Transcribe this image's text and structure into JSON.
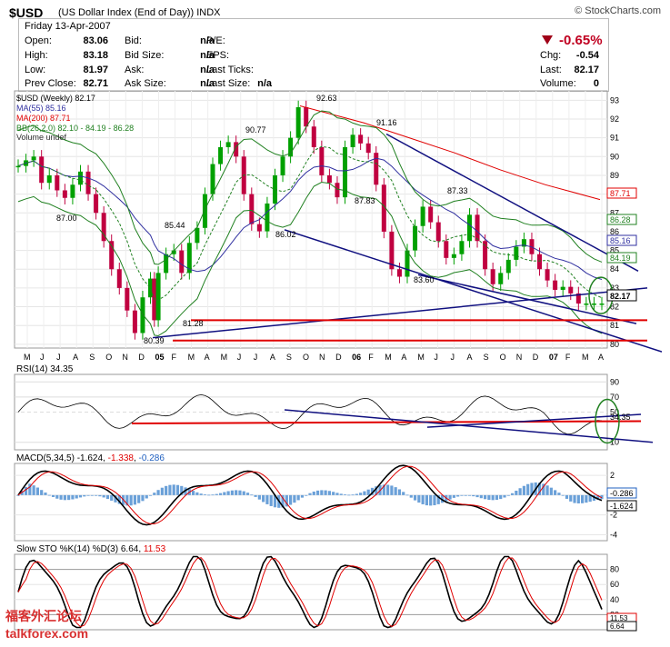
{
  "header": {
    "symbol": "$USD",
    "description": "(US Dollar Index (End of Day))",
    "exchange": "INDX",
    "brand": "© StockCharts.com"
  },
  "quote": {
    "date": "Friday  13-Apr-2007",
    "open_label": "Open:",
    "open": "83.06",
    "high_label": "High:",
    "high": "83.18",
    "low_label": "Low:",
    "low": "81.97",
    "prev_label": "Prev Close:",
    "prev": "82.71",
    "bid_label": "Bid:",
    "bid": "n/a",
    "bidsize_label": "Bid Size:",
    "bidsize": "n/a",
    "ask_label": "Ask:",
    "ask": "n/a",
    "asksize_label": "Ask Size:",
    "asksize": "n/a",
    "pe_label": "P/E:",
    "eps_label": "EPS:",
    "lastticks_label": "Last Ticks:",
    "lastsize_label": "Last Size:",
    "lastsize": "n/a",
    "change_pct": "-0.65%",
    "chg_label": "Chg:",
    "chg": "-0.54",
    "last_label": "Last:",
    "last": "82.17",
    "volume_label": "Volume:",
    "volume": "0"
  },
  "colors": {
    "price_up": "#00a000",
    "price_down": "#c00040",
    "ma55": "#3030a0",
    "ma200": "#e00000",
    "bb": "#208020",
    "trend": "#101080",
    "support": "#e00000",
    "circle": "#208020",
    "accent_red": "#c00020"
  },
  "legend": {
    "price": "$USD (Weekly) 82.17",
    "ma55": "MA(55) 85.16",
    "ma200": "MA(200) 87.71",
    "bb": "BB(26,2.0) 82.10 - 84.19 - 86.28",
    "vol": "Volume undef"
  },
  "indicators": {
    "rsi": "RSI(14) 34.35",
    "macd_name": "MACD(5,34,5)",
    "macd_v1": "-1.624",
    "macd_v2": "-1.338",
    "macd_v3": "-0.286",
    "sto_name": "Slow STO %K(14) %D(3)",
    "sto_k": "6.64",
    "sto_d": "11.53"
  },
  "watermark": {
    "line1": "福客外汇论坛",
    "line2": "talkforex.com"
  },
  "chart_data": [
    {
      "type": "line",
      "title": "$USD (Weekly) 82.17",
      "x_ticks": [
        "M",
        "J",
        "J",
        "A",
        "S",
        "O",
        "N",
        "D",
        "05",
        "F",
        "M",
        "A",
        "M",
        "J",
        "J",
        "A",
        "S",
        "O",
        "N",
        "D",
        "06",
        "F",
        "M",
        "A",
        "M",
        "J",
        "J",
        "A",
        "S",
        "O",
        "N",
        "D",
        "07",
        "F",
        "M",
        "A"
      ],
      "y_ticks": [
        80,
        81,
        82,
        83,
        84,
        85,
        86,
        87,
        88,
        89,
        90,
        91,
        92,
        93
      ],
      "ylim": [
        79.8,
        93.5
      ],
      "series": [
        {
          "name": "$USD (Weekly)",
          "x": [
            0,
            2,
            4,
            6,
            8,
            10,
            12,
            14,
            16,
            18,
            20,
            22,
            24,
            26,
            28,
            30,
            32,
            34,
            35,
            36,
            38,
            40,
            42,
            44,
            46,
            48,
            50,
            52,
            54,
            56,
            58,
            60,
            62,
            64,
            66,
            68,
            70,
            72,
            74,
            76,
            78,
            80,
            82,
            84,
            86,
            88,
            90,
            92,
            94,
            96,
            98,
            100,
            102,
            104,
            106,
            108,
            110,
            112,
            114,
            116,
            118,
            120,
            122,
            124,
            126,
            128,
            130,
            132,
            134,
            136,
            138,
            140,
            142,
            144,
            146,
            148,
            150
          ],
          "values": [
            89.5,
            89.8,
            90.0,
            88.6,
            89.0,
            88.2,
            87.8,
            88.5,
            89.2,
            88.0,
            87.0,
            85.5,
            84.0,
            83.0,
            81.8,
            80.6,
            82.5,
            83.5,
            81.28,
            83.8,
            84.8,
            85.0,
            83.8,
            85.4,
            86.2,
            88.0,
            89.6,
            90.5,
            90.77,
            90.0,
            88.0,
            86.4,
            86.02,
            87.5,
            89.0,
            90.0,
            91.0,
            92.63,
            91.6,
            90.5,
            89.0,
            88.6,
            87.83,
            90.5,
            91.16,
            90.7,
            90.2,
            88.5,
            86.0,
            84.0,
            83.6,
            85.0,
            86.3,
            87.33,
            86.5,
            85.5,
            84.6,
            84.8,
            85.5,
            86.9,
            85.5,
            84.0,
            83.2,
            83.8,
            84.5,
            85.2,
            85.6,
            84.8,
            84.0,
            83.4,
            82.9,
            83.06,
            82.71,
            82.17,
            82.17,
            82.17,
            82.17
          ]
        },
        {
          "name": "MA(55)",
          "values_last": 85.16
        },
        {
          "name": "MA(200)",
          "values_last": 87.71
        },
        {
          "name": "BB(26,2.0)",
          "values_last": [
            82.1,
            84.19,
            86.28
          ]
        }
      ],
      "annotations": [
        {
          "label": "87.00"
        },
        {
          "label": "85.44"
        },
        {
          "label": "81.28"
        },
        {
          "label": "80.39"
        },
        {
          "label": "90.77"
        },
        {
          "label": "92.63"
        },
        {
          "label": "86.02"
        },
        {
          "label": "91.16"
        },
        {
          "label": "87.83"
        },
        {
          "label": "83.60"
        },
        {
          "label": "87.33"
        }
      ],
      "right_labels": [
        "87.71",
        "86.28",
        "85.16",
        "84.19",
        "82.17"
      ]
    },
    {
      "type": "line",
      "title": "RSI(14) 34.35",
      "y_ticks": [
        10,
        50,
        70,
        90
      ],
      "ylim": [
        0,
        100
      ],
      "series": [
        {
          "name": "RSI(14)",
          "values_last": 34.35
        }
      ],
      "right_labels": [
        "34.35"
      ]
    },
    {
      "type": "line",
      "title": "MACD(5,34,5) -1.624, -1.338, -0.286",
      "y_ticks": [
        -4,
        -2,
        0,
        2
      ],
      "ylim": [
        -4.6,
        3.2
      ],
      "series": [
        {
          "name": "MACD",
          "values_last": -1.624
        },
        {
          "name": "Signal",
          "values_last": -1.338
        },
        {
          "name": "Histogram",
          "values_last": -0.286
        }
      ],
      "right_labels": [
        "-0.286",
        "-1.624"
      ]
    },
    {
      "type": "line",
      "title": "Slow STO %K(14) %D(3) 6.64, 11.53",
      "y_ticks": [
        20,
        40,
        60,
        80
      ],
      "ylim": [
        0,
        100
      ],
      "series": [
        {
          "name": "%K",
          "values_last": 6.64
        },
        {
          "name": "%D",
          "values_last": 11.53
        }
      ],
      "right_labels": [
        "11.53",
        "6.64"
      ]
    }
  ]
}
